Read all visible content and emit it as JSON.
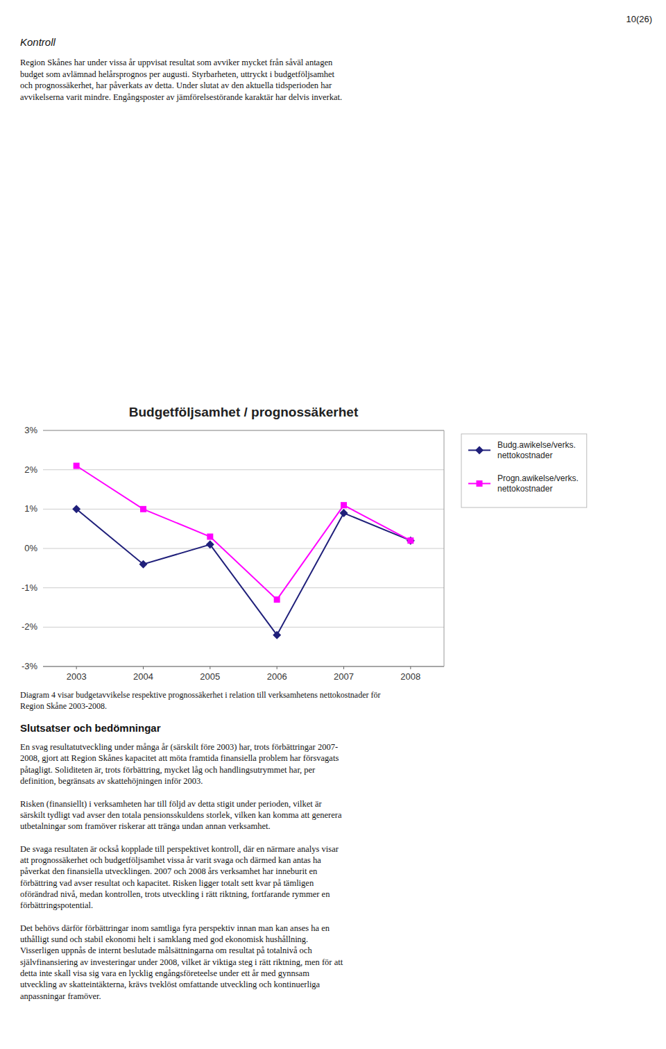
{
  "chart_data": {
    "type": "line",
    "title": "Budgetföljsamhet / prognossäkerhet",
    "x": [
      2003,
      2004,
      2005,
      2006,
      2007,
      2008
    ],
    "xlim": [
      2002.5,
      2008.5
    ],
    "xticks": [
      2003,
      2004,
      2005,
      2006,
      2007,
      2008
    ],
    "ylim": [
      -0.03,
      0.03
    ],
    "yticks": [
      {
        "value": -0.03,
        "label": "-3%"
      },
      {
        "value": -0.02,
        "label": "-2%"
      },
      {
        "value": -0.01,
        "label": "-1%"
      },
      {
        "value": 0.0,
        "label": "0%"
      },
      {
        "value": 0.01,
        "label": "1%"
      },
      {
        "value": 0.02,
        "label": "2%"
      },
      {
        "value": 0.03,
        "label": "3%"
      }
    ],
    "grid": true,
    "legend": "right",
    "series": [
      {
        "name": "Budg.awikelse/verks.\nnettokostnader",
        "color": "#1f1f7a",
        "marker": "diamond",
        "values": [
          0.01,
          -0.004,
          0.001,
          -0.022,
          0.009,
          0.002
        ]
      },
      {
        "name": "Progn.awikelse/verks.\nnettokostnader",
        "color": "#ff00ff",
        "marker": "square",
        "values": [
          0.021,
          0.01,
          0.003,
          -0.013,
          0.011,
          0.002
        ]
      }
    ],
    "annotations": [
      "10(26)",
      "Kontroll",
      "Region Skånes har under vissa år uppvisat resultat som avviker mycket från såväl antagen\nbudget som avlämnad helårsprognos per augusti. Styrbarheten, uttryckt i budgetföljsamhet\noch prognossäkerhet, har påverkats av detta. Under slutat av den aktuella tidsperioden har\navvikelserna varit mindre. Engångsposter av jämförelsestörande karaktär har delvis inverkat.",
      "Diagram 4 visar budgetavvikelse respektive prognossäkerhet i relation till verksamhetens nettokostnader för\nRegion Skåne 2003-2008.",
      "Slutsatser och bedömningar",
      "En svag resultatutveckling under många år (särskilt före 2003) har, trots förbättringar 2007-\n2008, gjort att Region Skånes kapacitet att möta framtida finansiella problem har försvagats\npåtagligt. Soliditeten är, trots förbättring, mycket låg och handlingsutrymmet har, per\ndefinition, begränsats av skattehöjningen inför 2003.\n\nRisken (finansiellt) i verksamheten har till följd av detta stigit under perioden, vilket är\nsärskilt tydligt vad avser den totala pensionsskuldens storlek, vilken kan komma att generera\nutbetalningar som framöver riskerar att tränga undan annan verksamhet.\n\nDe svaga resultaten är också kopplade till perspektivet kontroll, där en närmare analys visar\natt prognossäkerhet och budgetföljsamhet vissa år varit svaga och därmed kan antas ha\npåverkat den finansiella utvecklingen. 2007 och 2008 års verksamhet har inneburit en\nförbättring vad avser resultat och kapacitet. Risken ligger totalt sett kvar på tämligen\noförändrad nivå, medan kontrollen, trots utveckling i rätt riktning, fortfarande rymmer en\nförbättringspotential.\n\nDet behövs därför förbättringar inom samtliga fyra perspektiv innan man kan anses ha en\nuthålligt sund och stabil ekonomi helt i samklang med god ekonomisk hushållning.\nVisserligen uppnås de internt beslutade målsättningarna om resultat på totalnivå och\nsjälvfinansiering av investeringar under 2008, vilket är viktiga steg i rätt riktning, men för att\ndetta inte skall visa sig vara en lycklig engångsföreteelse under ett år med gynnsam\nutveckling av skatteintäkterna, krävs tveklöst omfattande utveckling och kontinuerliga\nanpassningar framöver."
    ]
  }
}
